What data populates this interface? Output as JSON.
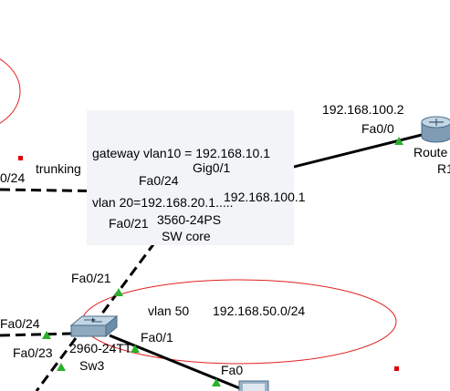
{
  "notes": {
    "gateway_line1": "gateway vlan10 = 192.168.10.1",
    "gateway_line2": "vlan 20=192.168.20.1....."
  },
  "links": {
    "trunk_label": "trunking",
    "left_port": "0/24",
    "core_fa024": "Fa0/24",
    "core_gig01": "Gig0/1",
    "core_ip": "192.168.100.1",
    "core_fa021": "Fa0/21",
    "sw3_fa021": "Fa0/21",
    "sw3_fa024": "Fa0/24",
    "sw3_fa023": "Fa0/23",
    "sw3_fa01": "Fa0/1",
    "pc_fa0": "Fa0",
    "router_ip": "192.168.100.2",
    "router_fa00": "Fa0/0"
  },
  "devices": {
    "core_model": "3560-24PS",
    "core_name": "SW core",
    "sw3_model": "2960-24TT",
    "sw3_name": "Sw3",
    "router_label1": "Route",
    "router_label2": "R1"
  },
  "vlan_area": {
    "name": "vlan 50",
    "subnet": "192.168.50.0/24"
  },
  "colors": {
    "link_up": "#2bb02b",
    "area_outline": "#e02020",
    "marker": "#e00000",
    "note_bg": "#f2f4f8"
  }
}
